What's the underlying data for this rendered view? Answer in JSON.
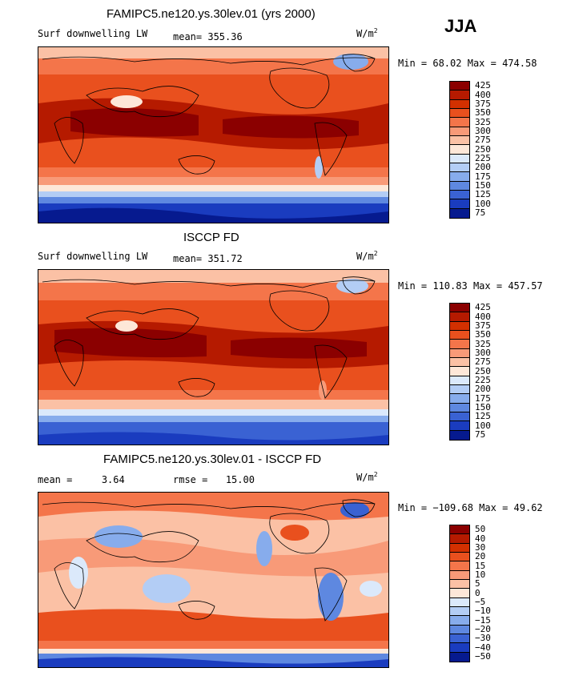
{
  "season": "JJA",
  "units_base": "W/m",
  "units_exp": "2",
  "chart_data": [
    {
      "type": "heatmap",
      "title": "FAMIPC5.ne120.ys.30lev.01 (yrs 2000)",
      "variable": "Surf downwelling LW",
      "mean_label": "mean=",
      "mean": "355.36",
      "min_label": "Min =",
      "min": "68.02",
      "max_label": "Max =",
      "max": "474.58",
      "levels": [
        "425",
        "400",
        "375",
        "350",
        "325",
        "300",
        "275",
        "250",
        "225",
        "200",
        "175",
        "150",
        "125",
        "100",
        "75"
      ],
      "colors": [
        "#8b0000",
        "#b51a00",
        "#d33000",
        "#e9501e",
        "#f4754a",
        "#f89a78",
        "#fbc1a5",
        "#fde7d8",
        "#dbe9fb",
        "#b3cdf5",
        "#87acec",
        "#5e88e0",
        "#3a62d3",
        "#1a3cbf",
        "#061a8f"
      ]
    },
    {
      "type": "heatmap",
      "title": "ISCCP FD",
      "variable": "Surf downwelling LW",
      "mean_label": "mean=",
      "mean": "351.72",
      "min_label": "Min =",
      "min": "110.83",
      "max_label": "Max =",
      "max": "457.57",
      "levels": [
        "425",
        "400",
        "375",
        "350",
        "325",
        "300",
        "275",
        "250",
        "225",
        "200",
        "175",
        "150",
        "125",
        "100",
        "75"
      ],
      "colors": [
        "#8b0000",
        "#b51a00",
        "#d33000",
        "#e9501e",
        "#f4754a",
        "#f89a78",
        "#fbc1a5",
        "#fde7d8",
        "#dbe9fb",
        "#b3cdf5",
        "#87acec",
        "#5e88e0",
        "#3a62d3",
        "#1a3cbf",
        "#061a8f"
      ]
    },
    {
      "type": "heatmap",
      "title": "FAMIPC5.ne120.ys.30lev.01 - ISCCP FD",
      "mean_label": "mean =",
      "mean": "3.64",
      "rmse_label": "rmse =",
      "rmse": "15.00",
      "min_label": "Min =",
      "min": "−109.68",
      "max_label": "Max =",
      "max": "49.62",
      "levels": [
        "50",
        "40",
        "30",
        "20",
        "15",
        "10",
        "5",
        "0",
        "−5",
        "−10",
        "−15",
        "−20",
        "−30",
        "−40",
        "−50"
      ],
      "colors": [
        "#8b0000",
        "#b51a00",
        "#d33000",
        "#e9501e",
        "#f4754a",
        "#f89a78",
        "#fbc1a5",
        "#fde7d8",
        "#dbe9fb",
        "#b3cdf5",
        "#87acec",
        "#5e88e0",
        "#3a62d3",
        "#1a3cbf",
        "#061a8f"
      ]
    }
  ]
}
